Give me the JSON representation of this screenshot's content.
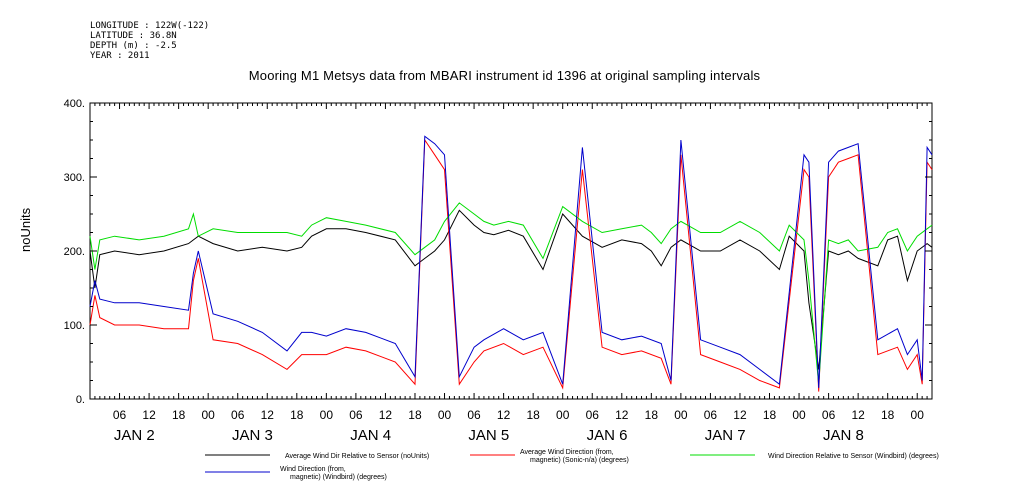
{
  "metadata": {
    "longitude": "LONGITUDE : 122W(-122)",
    "latitude": "LATITUDE : 36.8N",
    "depth": "DEPTH (m) : -2.5",
    "year": "YEAR : 2011"
  },
  "chart_data": {
    "type": "line",
    "title": "Mooring M1 Metsys data from MBARI instrument id 1396 at original sampling intervals",
    "ylabel": "noUnits",
    "ylim": [
      0,
      400
    ],
    "yticks": [
      0,
      100,
      200,
      300,
      400
    ],
    "ytick_labels": [
      "0.",
      "100.",
      "200.",
      "300.",
      "400."
    ],
    "xlim_hours": [
      0,
      171
    ],
    "hour_tick_labels": [
      "06",
      "12",
      "18",
      "00",
      "06",
      "12",
      "18",
      "00",
      "06",
      "12",
      "18",
      "00",
      "06",
      "12",
      "18",
      "00",
      "06",
      "12",
      "18",
      "00",
      "06",
      "12",
      "18",
      "00",
      "06",
      "12",
      "18",
      "00"
    ],
    "day_labels": [
      "JAN 2",
      "JAN 3",
      "JAN 4",
      "JAN 5",
      "JAN 6",
      "JAN 7",
      "JAN 8"
    ],
    "series": [
      {
        "name": "Average Wind Dir Relative to Sensor (noUnits)",
        "color": "#000000",
        "x": [
          0,
          1,
          2,
          5,
          10,
          15,
          20,
          21,
          22,
          25,
          30,
          35,
          40,
          43,
          45,
          48,
          52,
          56,
          62,
          66,
          68,
          70,
          72,
          75,
          78,
          80,
          82,
          85,
          88,
          92,
          96,
          100,
          104,
          108,
          112,
          114,
          116,
          118,
          120,
          124,
          128,
          132,
          136,
          140,
          142,
          145,
          146,
          148,
          150,
          152,
          154,
          156,
          160,
          162,
          164,
          166,
          168,
          170,
          171
        ],
        "y": [
          200,
          150,
          195,
          200,
          195,
          200,
          210,
          215,
          220,
          210,
          200,
          205,
          200,
          205,
          220,
          230,
          230,
          225,
          215,
          180,
          190,
          200,
          215,
          255,
          235,
          225,
          222,
          228,
          220,
          175,
          250,
          220,
          205,
          215,
          210,
          200,
          180,
          205,
          215,
          200,
          200,
          215,
          200,
          175,
          220,
          200,
          130,
          40,
          200,
          195,
          200,
          190,
          180,
          215,
          220,
          160,
          200,
          210,
          205
        ]
      },
      {
        "name": "Average Wind Direction (from, magnetic) (Sonic-n/a) (degrees)",
        "color": "#ff0000",
        "x": [
          0,
          1,
          2,
          5,
          10,
          15,
          20,
          21,
          22,
          25,
          30,
          35,
          40,
          43,
          45,
          48,
          52,
          56,
          62,
          66,
          68,
          70,
          72,
          75,
          78,
          80,
          84,
          88,
          92,
          96,
          100,
          104,
          108,
          112,
          116,
          118,
          120,
          124,
          128,
          132,
          136,
          140,
          145,
          146,
          148,
          150,
          152,
          154,
          156,
          160,
          164,
          166,
          168,
          169,
          170,
          171
        ],
        "y": [
          100,
          140,
          110,
          100,
          100,
          95,
          95,
          160,
          190,
          80,
          75,
          60,
          40,
          60,
          60,
          60,
          70,
          65,
          50,
          20,
          350,
          330,
          310,
          20,
          50,
          65,
          75,
          60,
          70,
          15,
          310,
          70,
          60,
          65,
          55,
          20,
          330,
          60,
          50,
          40,
          25,
          15,
          310,
          300,
          10,
          300,
          320,
          325,
          330,
          60,
          70,
          40,
          60,
          20,
          320,
          310
        ]
      },
      {
        "name": "Wind Direction Relative to Sensor (Windbird) (degrees)",
        "color": "#00dd00",
        "x": [
          0,
          1,
          2,
          5,
          10,
          15,
          20,
          21,
          22,
          25,
          30,
          35,
          40,
          43,
          45,
          48,
          52,
          56,
          62,
          66,
          68,
          70,
          72,
          75,
          78,
          80,
          82,
          85,
          88,
          92,
          96,
          100,
          104,
          108,
          112,
          114,
          116,
          118,
          120,
          124,
          128,
          132,
          136,
          140,
          142,
          145,
          146,
          148,
          150,
          152,
          154,
          156,
          160,
          162,
          164,
          166,
          168,
          170,
          171
        ],
        "y": [
          220,
          175,
          215,
          220,
          215,
          220,
          230,
          250,
          220,
          230,
          225,
          225,
          225,
          220,
          235,
          245,
          240,
          235,
          225,
          195,
          205,
          215,
          240,
          265,
          250,
          240,
          235,
          240,
          235,
          190,
          260,
          240,
          225,
          230,
          235,
          225,
          210,
          230,
          240,
          225,
          225,
          240,
          225,
          200,
          235,
          215,
          160,
          20,
          215,
          210,
          215,
          200,
          205,
          225,
          230,
          200,
          220,
          230,
          235
        ]
      },
      {
        "name": "Wind Direction (from, magnetic) (Windbird) (degrees)",
        "color": "#0000cc",
        "x": [
          0,
          1,
          2,
          5,
          10,
          15,
          20,
          21,
          22,
          25,
          30,
          35,
          40,
          43,
          45,
          48,
          52,
          56,
          62,
          66,
          68,
          70,
          72,
          75,
          78,
          80,
          84,
          88,
          92,
          96,
          100,
          104,
          108,
          112,
          116,
          118,
          120,
          124,
          128,
          132,
          136,
          140,
          145,
          146,
          148,
          150,
          152,
          154,
          156,
          160,
          164,
          166,
          168,
          169,
          170,
          171
        ],
        "y": [
          125,
          160,
          135,
          130,
          130,
          125,
          120,
          170,
          200,
          115,
          105,
          90,
          65,
          90,
          90,
          85,
          95,
          90,
          75,
          30,
          355,
          345,
          330,
          30,
          70,
          80,
          95,
          80,
          90,
          20,
          340,
          90,
          80,
          85,
          75,
          25,
          350,
          80,
          70,
          60,
          40,
          20,
          330,
          320,
          15,
          320,
          335,
          340,
          345,
          80,
          95,
          60,
          80,
          25,
          340,
          330
        ]
      }
    ],
    "legend": [
      {
        "label": "Average Wind Dir Relative to Sensor (noUnits)",
        "color": "#000000"
      },
      {
        "label": "Average Wind Direction (from,\nmagnetic) (Sonic-n/a) (degrees)",
        "color": "#ff0000"
      },
      {
        "label": "Wind Direction Relative to Sensor (Windbird) (degrees)",
        "color": "#00dd00"
      },
      {
        "label": "Wind Direction (from,\nmagnetic) (Windbird) (degrees)",
        "color": "#0000cc"
      }
    ]
  }
}
